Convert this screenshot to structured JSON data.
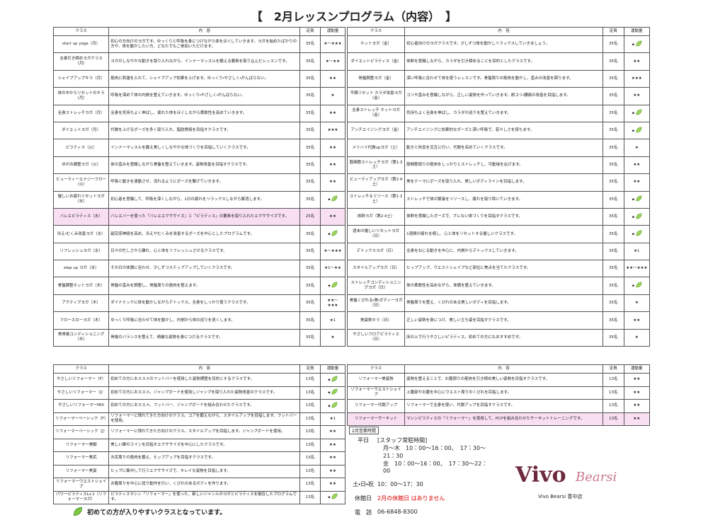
{
  "title": "【　2月レッスンプログラム（内容）　】",
  "columns": [
    "クラス",
    "内　容",
    "定員",
    "運動量"
  ],
  "schedule_left": [
    {
      "class": "start up yoga（月）",
      "description": "初心の方向けのヨガです。ゆっくりと呼吸を身につけながら体をほぐしていきます。ヨガを始めたばかりの方や、体を動かしたい方、どなたでもご参加いただけます。",
      "capacity": "35名",
      "intensity": "★～★★★",
      "beginner": false,
      "highlight": false
    },
    {
      "class": "全身引き締めヨガクラス（月）",
      "description": "ヨガのしなやかな動きを取り入れながら、インナーマッスルを鍛える要素を取り込んだレッスンです。",
      "capacity": "35名",
      "intensity": "★～★★",
      "beginner": false,
      "highlight": false
    },
    {
      "class": "シェイプアップキラ（月）",
      "description": "筋肉に刺激を入れて、シェイプアップ効果を上げます。ゆっくり・やさしく・がんばらない。",
      "capacity": "35名",
      "intensity": "★★",
      "beginner": false,
      "highlight": false
    },
    {
      "class": "体の中からリセットのキラ（月）",
      "description": "呼吸を深めて体の内側を整えていきます。ゆっくり・やさしく・がんばらない。",
      "capacity": "35名",
      "intensity": "★",
      "beginner": false,
      "highlight": false
    },
    {
      "class": "全身ストレッチヨガ（月）",
      "description": "全身を気持ちよく伸ばし、疲れた体をほぐしながら柔軟性を高めていきます。",
      "capacity": "35名",
      "intensity": "★★",
      "beginner": false,
      "highlight": false
    },
    {
      "class": "ダイエットヨガ（月）",
      "description": "代謝を上げるポーズを多く取り入れ、脂肪燃焼を目指すクラスです。",
      "capacity": "35名",
      "intensity": "★★★",
      "beginner": false,
      "highlight": false
    },
    {
      "class": "ピラティス（火）",
      "description": "インナーマッスルを鍛え美しくしなやかな体づくりを目指していくクラスです。",
      "capacity": "35名",
      "intensity": "★★",
      "beginner": false,
      "highlight": false
    },
    {
      "class": "ゆがみ調整ヨガ（火）",
      "description": "体の歪みを意識しながら骨盤を整えていきます。姿勢改善を目指すクラスです。",
      "capacity": "35名",
      "intensity": "★★",
      "beginner": false,
      "highlight": false
    },
    {
      "class": "ビューティーエナジーフロー（火）",
      "description": "呼吸と動きを連動させ、流れるようにポーズを繋げていきます。",
      "capacity": "35名",
      "intensity": "★★",
      "beginner": false,
      "highlight": false
    },
    {
      "class": "優しいお疲れリセットヨガ（水）",
      "description": "初心者を意識して、呼吸を深くしながら、1日の疲れをリラックスしながら解消します。",
      "capacity": "35名",
      "intensity": "★",
      "beginner": true,
      "highlight": false
    },
    {
      "class": "バレエピラティス（水）",
      "description": "バレエバーを使った「バレエエクササイズ」と「ピラティス」の要素を取り入れたエクササイズです。",
      "capacity": "25名",
      "intensity": "★★",
      "beginner": false,
      "highlight": true
    },
    {
      "class": "冷え・むくみ改善ヨガ（水）",
      "description": "副交感神経を高め、冷えやむくみを改善するポーズを中心としたプログラムです。",
      "capacity": "35名",
      "intensity": "★",
      "beginner": true,
      "highlight": false
    },
    {
      "class": "リフレッシュヨガ（水）",
      "description": "日々の忙しさから離れ、心と体をリフレッシュさせるクラスです。",
      "capacity": "35名",
      "intensity": "★～★★★",
      "beginner": false,
      "highlight": false
    },
    {
      "class": "step up ヨガ（水）",
      "description": "その日の体調に合わせ、少しずつステップアップしていくクラスです。",
      "capacity": "35名",
      "intensity": "★1～★★",
      "beginner": false,
      "highlight": false
    },
    {
      "class": "骨盤調整ホットヨガ（木）",
      "description": "骨盤の歪みを調整し、骨盤周りの筋肉を整えます。",
      "capacity": "35名",
      "intensity": "★",
      "beginner": true,
      "highlight": false
    },
    {
      "class": "アクティブヨガ（木）",
      "description": "ダイナミックに体を動かしながらデトックス。全身をしっかり使うクラスです。",
      "capacity": "35名",
      "intensity": "★★～★★★",
      "beginner": false,
      "highlight": false
    },
    {
      "class": "フロースローヨガ（木）",
      "description": "ゆっくり呼吸に合わせて体を動かし、内側から体の巡りを良くします。",
      "capacity": "35名",
      "intensity": "★1",
      "beginner": false,
      "highlight": false
    },
    {
      "class": "美骨格コンディショニング（木）",
      "description": "骨格のバランスを整えて、綺麗な姿勢を身につけるクラスです。",
      "capacity": "35名",
      "intensity": "★",
      "beginner": false,
      "highlight": false
    }
  ],
  "schedule_right": [
    {
      "class": "ホットヨガ（金）",
      "description": "初心者向けのヨガクラスです。少しずつ体を動かしリラックスしていきましょう。",
      "capacity": "35名",
      "intensity": "★",
      "beginner": true,
      "highlight": false
    },
    {
      "class": "ダイエットピラティス（金）",
      "description": "体幹を意識しながら、カラダを引き締めることを目的としたクラスです。",
      "capacity": "35名",
      "intensity": "★★",
      "beginner": false,
      "highlight": false
    },
    {
      "class": "骨盤調整ヨガ（金）",
      "description": "深い呼吸に合わせて体を使うレッスンです。骨盤周りの筋肉を動かし、歪みの改善を図ります。",
      "capacity": "35名",
      "intensity": "★★★",
      "beginner": false,
      "highlight": false
    },
    {
      "class": "不調リセット カラダ改善ヨガ（金）",
      "description": "コリや歪みを意識しながら、正しい姿勢を作っていきます。肩コリ・腰痛の改善を目指します。",
      "capacity": "35名",
      "intensity": "★★",
      "beginner": false,
      "highlight": false
    },
    {
      "class": "全身ストレッチ ホットヨガ（金）",
      "description": "気持ちよく全身を伸ばし、カラダの巡りを整えていきます。",
      "capacity": "35名",
      "intensity": "★",
      "beginner": true,
      "highlight": false
    },
    {
      "class": "アンチエイジングヨガ（金）",
      "description": "アンチエイジングに効果的なポーズと深い呼吸で、若々しさを保ちます。",
      "capacity": "35名",
      "intensity": "★",
      "beginner": true,
      "highlight": false
    },
    {
      "class": "メリハリ代謝upヨガ（土）",
      "description": "動きと休息を交互に行い、代謝を高めていくクラスです。",
      "capacity": "35名",
      "intensity": "★",
      "beginner": false,
      "highlight": false
    },
    {
      "class": "股関節ストレッチヨガ（第1·3土）",
      "description": "股関節周りの筋肉をしっかりとストレッチし、可動域を広げます。",
      "capacity": "35名",
      "intensity": "★★",
      "beginner": false,
      "highlight": false
    },
    {
      "class": "ビューティアップヨガ（第2·4土）",
      "description": "美をテーマにポーズを取り入れ、美しいボディラインを目指します。",
      "capacity": "35名",
      "intensity": "★★",
      "beginner": false,
      "highlight": false
    },
    {
      "class": "ストレッチ＆リリース（第1·3土）",
      "description": "ストレッチで体の緊張をリリースし、疲れを取り除いていきます。",
      "capacity": "35名",
      "intensity": "★",
      "beginner": true,
      "highlight": false
    },
    {
      "class": "体幹ヨガ（第2·4土）",
      "description": "体幹を意識したポーズで、ブレない体づくりを目指すクラスです。",
      "capacity": "35名",
      "intensity": "★",
      "beginner": true,
      "highlight": false
    },
    {
      "class": "週末の優しいリセットヨガ（日）",
      "description": "1週間の疲れを癒し、心と体をリセットする優しいクラスです。",
      "capacity": "35名",
      "intensity": "★",
      "beginner": true,
      "highlight": false
    },
    {
      "class": "デトックスヨガ（日）",
      "description": "全身をねじる動きを中心に、内側からデトックスしていきます。",
      "capacity": "35名",
      "intensity": "★1",
      "beginner": false,
      "highlight": false
    },
    {
      "class": "スタイルアップヨガ（日）",
      "description": "ヒップアップ、ウエストシェイプなど部位に焦点を当てたクラスです。",
      "capacity": "35名",
      "intensity": "★★～★★★",
      "beginner": false,
      "highlight": false
    },
    {
      "class": "ストレッチコンディショニングヨガ（日）",
      "description": "体の柔軟性を高めながら、体調を整えていきます。",
      "capacity": "35名",
      "intensity": "★",
      "beginner": true,
      "highlight": false
    },
    {
      "class": "骨盤くびれる・美・ボディーヨガ（日）",
      "description": "骨盤周りを整え、くびれのある美しいボディを目指します。",
      "capacity": "35名",
      "intensity": "★",
      "beginner": false,
      "highlight": false
    },
    {
      "class": "美姿勢キラ（日）",
      "description": "正しい姿勢を身につけ、美しい立ち姿を目指すクラスです。",
      "capacity": "35名",
      "intensity": "★★",
      "beginner": false,
      "highlight": false
    },
    {
      "class": "やさしいフロアピラティス（日）",
      "description": "床の上で行うやさしいピラティス。初めての方にもおすすめです。",
      "capacity": "35名",
      "intensity": "★",
      "beginner": false,
      "highlight": false
    }
  ],
  "reformer_left": [
    {
      "class": "やさしいリフォーマー（F）",
      "description": "初めての方におススメのフットバーを使用した姿勢調整を目的とするクラスです。",
      "capacity": "13名",
      "intensity": "★",
      "beginner": true,
      "highlight": false
    },
    {
      "class": "やさしいリフォーマー（J）",
      "description": "初めての方におススメ。ジャンプボードを使用しジャンプを取り入れた姿勢改善のクラスです。",
      "capacity": "13名",
      "intensity": "★",
      "beginner": true,
      "highlight": false
    },
    {
      "class": "やさしいリフォーマーMIX",
      "description": "初めての方におススメ。フットバー、ジャンプボードを組み合わせたクラスです。",
      "capacity": "13名",
      "intensity": "★",
      "beginner": true,
      "highlight": false
    },
    {
      "class": "リフォーマーベーシック（F）",
      "description": "リフォーマーに慣れてきた方向けのクラス。コアを鍛えながら、スタイルアップを目指します。フットバーを使用。",
      "capacity": "13名",
      "intensity": "★1",
      "beginner": false,
      "highlight": false
    },
    {
      "class": "リフォーマーベーシック（J）",
      "description": "リフォーマーに慣れてきた方向けのクラス。スタイルアップを目指します。ジャンプボードを使用。",
      "capacity": "13名",
      "intensity": "★★",
      "beginner": false,
      "highlight": false
    },
    {
      "class": "リフォーマー美脚",
      "description": "美しい脚のラインを目指すエクササイズを中心にしたクラスです。",
      "capacity": "13名",
      "intensity": "★★",
      "beginner": false,
      "highlight": false
    },
    {
      "class": "リフォーマー美尻",
      "description": "お尻周りの筋肉を鍛え、ヒップアップを目指すクラスです。",
      "capacity": "13名",
      "intensity": "★★",
      "beginner": false,
      "highlight": false
    },
    {
      "class": "リフォーマー美姿",
      "description": "ヒップに集中して行うエクササイズで、キレイな姿勢を目指します。",
      "capacity": "13名",
      "intensity": "★★",
      "beginner": false,
      "highlight": false
    },
    {
      "class": "リフォーマーウエストシェイプ",
      "description": "お腹周りを中心に捻り動作を行い、くびれのあるボディを作ります。",
      "capacity": "13名",
      "intensity": "★★",
      "beginner": false,
      "highlight": false
    },
    {
      "class": "パワーピラティスLv.1（リフォーマーヨガ）",
      "description": "ピラティスマシン「リフォーマー」を使った、新しいジャンルのヨガとピラティスを融合したプログラムです。",
      "capacity": "13名",
      "intensity": "★",
      "beginner": true,
      "highlight": false
    }
  ],
  "reformer_right": [
    {
      "class": "リフォーマー美姿勢",
      "description": "姿勢を整えることで、お腹周りの筋肉を引き締め美しい姿勢を目指すクラスです。",
      "capacity": "13名",
      "intensity": "★★",
      "beginner": false,
      "highlight": false
    },
    {
      "class": "リフォーマーウエストシェイプ",
      "description": "上腹部やお腹を中心にウエスト周りのくびれを目指します。",
      "capacity": "13名",
      "intensity": "★★",
      "beginner": false,
      "highlight": false
    },
    {
      "class": "リフォーマー代謝アップ",
      "description": "リフォーマーで全身を使い、代謝アップを目指すクラスです。",
      "capacity": "13名",
      "intensity": "★★",
      "beginner": false,
      "highlight": false
    },
    {
      "class": "リフォーマーサーキット",
      "description": "マシンピラティスの「リフォーマー」を使用して、PCPを組み合わせたサーキットトレーニングです。",
      "capacity": "13名",
      "intensity": "★★",
      "beginner": false,
      "highlight": true
    }
  ],
  "hours": {
    "heading": "2月営業時間",
    "weekday_label": "平日",
    "staff_label": "[スタッフ常駐時間]",
    "mon_thu": "月～木　10：00～16：00、　17：30～21：30",
    "fri": "金　10：00～16：00、　17：30～22：00",
    "weekend_label": "土・日・祝",
    "weekend": "10：00～17：30",
    "closed_label": "休館日",
    "closed": "2月の休館日 はありません",
    "phone_label": "電　話",
    "phone": "06-6848-8300"
  },
  "logo": {
    "name": "Vivo",
    "script": "Bearsi",
    "store": "Vivo Bearsi 豊中店"
  },
  "footer_note": "初めての方が入りやすいクラスとなっています。"
}
